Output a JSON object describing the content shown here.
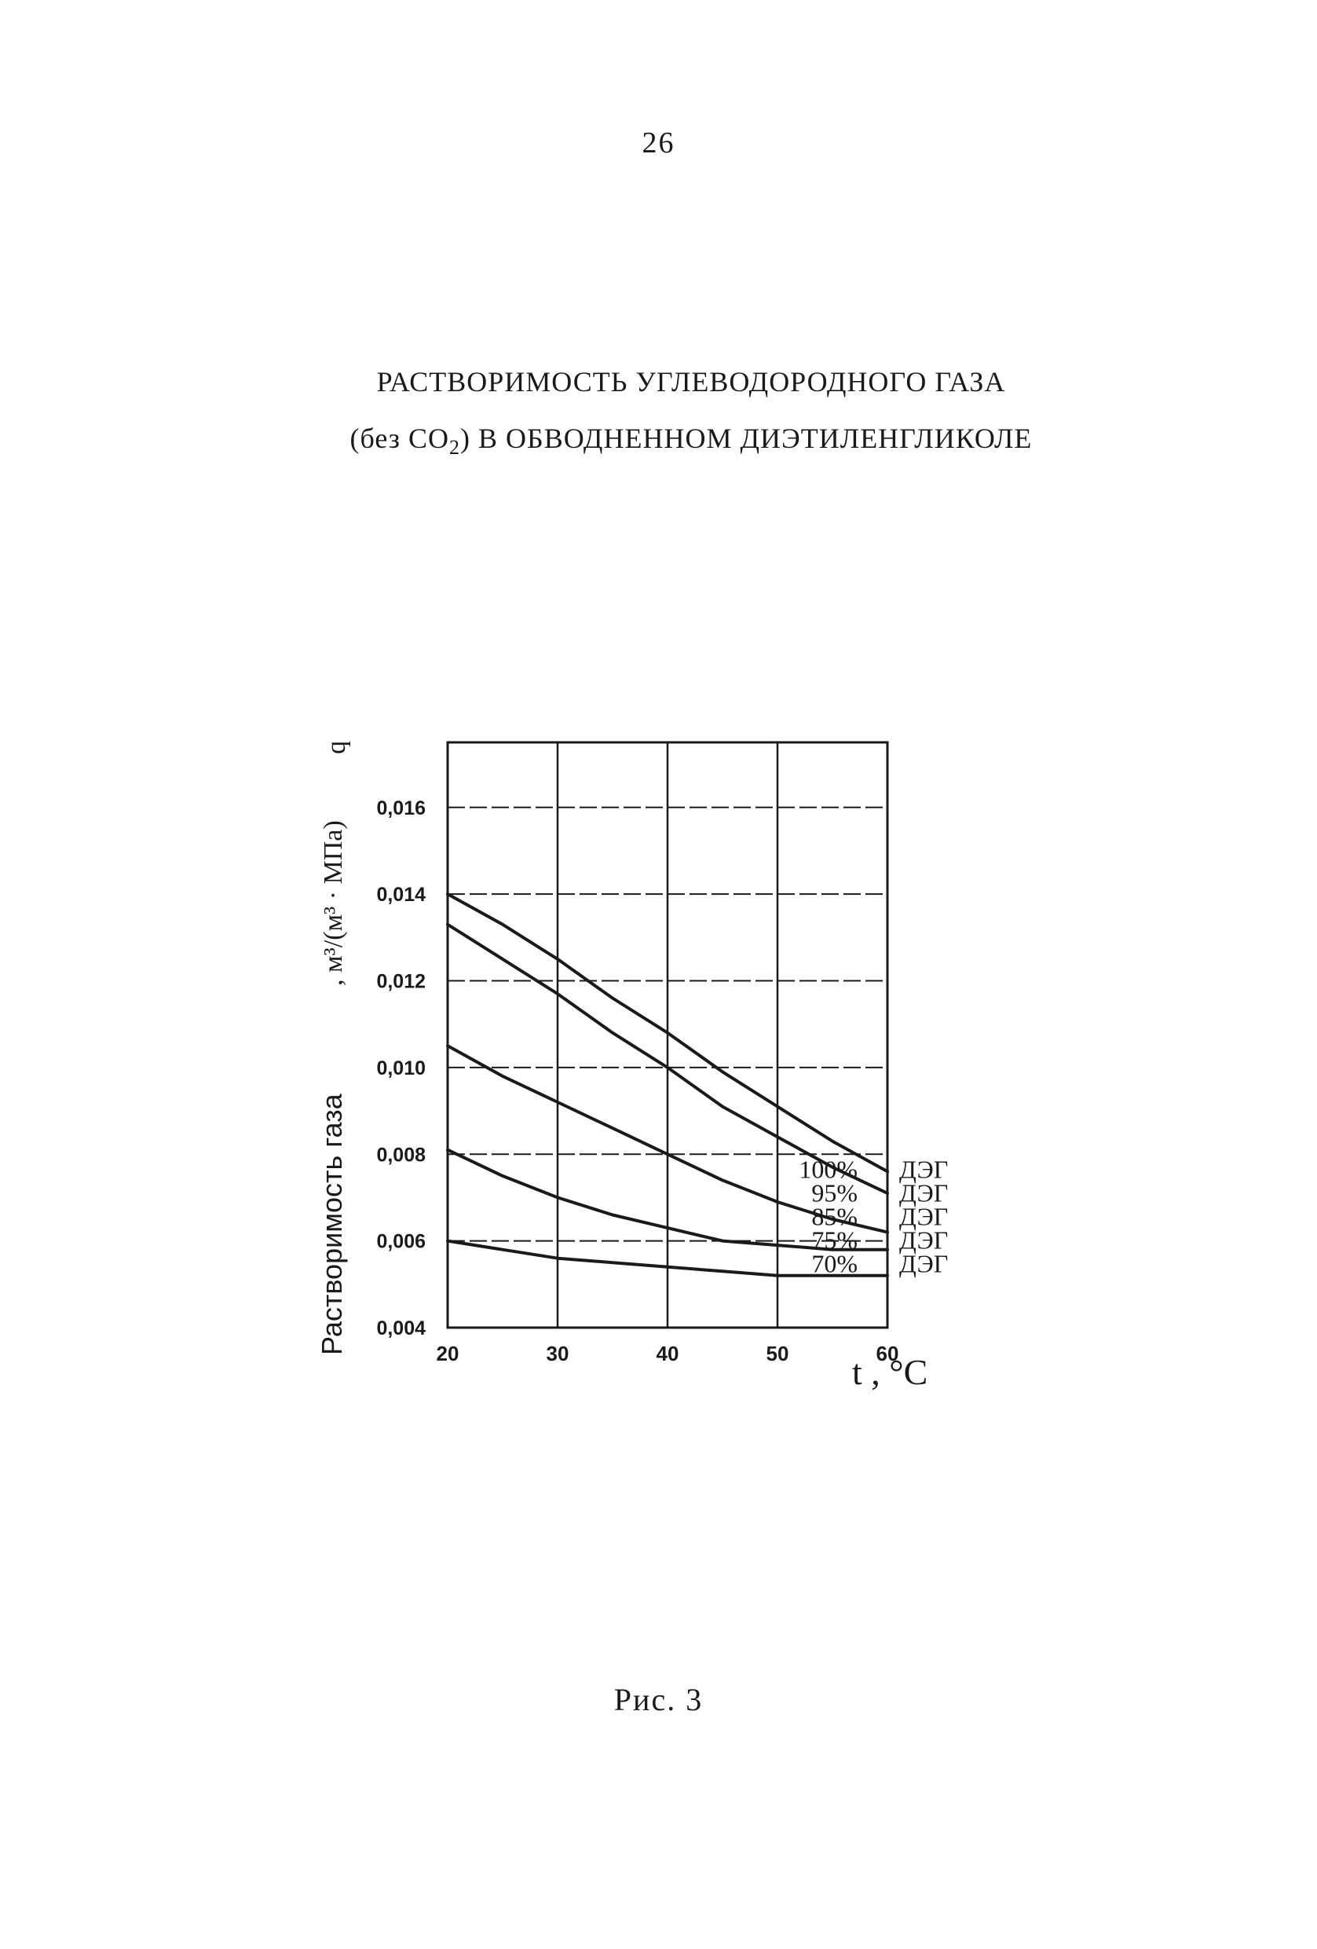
{
  "page_number": "26",
  "title": {
    "line1": "РАСТВОРИМОСТЬ УГЛЕВОДОРОДНОГО ГАЗА",
    "line2_open": "(без CO",
    "line2_sub": "2",
    "line2_rest": ") В ОБВОДНЕННОМ ДИЭТИЛЕНГЛИКОЛЕ"
  },
  "caption": "Рис. 3",
  "chart_data": {
    "type": "line",
    "title": "",
    "xlabel": "t , °C",
    "ylabel": "Растворимость газа q_ж^г , м³/(м³ · МПа)",
    "ylabel_text": "Растворимость газа",
    "ylabel_symbol": "q",
    "ylabel_units": ", м³/(м³ · МПа)",
    "xlim": [
      20,
      60
    ],
    "ylim": [
      0.004,
      0.0175
    ],
    "x_ticks": [
      20,
      30,
      40,
      50,
      60
    ],
    "x_tick_labels": [
      "20",
      "30",
      "40",
      "50",
      "60"
    ],
    "y_ticks": [
      0.004,
      0.006,
      0.008,
      0.01,
      0.012,
      0.014,
      0.016
    ],
    "y_tick_labels": [
      "0,004",
      "0,006",
      "0,008",
      "0,010",
      "0,012",
      "0,014",
      "0,016"
    ],
    "grid": true,
    "legend_placement": "right",
    "x": [
      20,
      25,
      30,
      35,
      40,
      45,
      50,
      55,
      60
    ],
    "series": [
      {
        "name": "100% ДЭГ",
        "pct": "100%",
        "suffix": "ДЭГ",
        "values": [
          0.014,
          0.0133,
          0.0125,
          0.0116,
          0.0108,
          0.0099,
          0.0091,
          0.0083,
          0.0076
        ]
      },
      {
        "name": "95% ДЭГ",
        "pct": "95%",
        "suffix": "ДЭГ",
        "values": [
          0.0133,
          0.0125,
          0.0117,
          0.0108,
          0.01,
          0.0091,
          0.0084,
          0.0077,
          0.0071
        ]
      },
      {
        "name": "85% ДЭГ",
        "pct": "85%",
        "suffix": "ДЭГ",
        "values": [
          0.0105,
          0.0098,
          0.0092,
          0.0086,
          0.008,
          0.0074,
          0.0069,
          0.0065,
          0.0062
        ]
      },
      {
        "name": "75% ДЭГ",
        "pct": "75%",
        "suffix": "ДЭГ",
        "values": [
          0.0081,
          0.0075,
          0.007,
          0.0066,
          0.0063,
          0.006,
          0.0059,
          0.0058,
          0.0058
        ]
      },
      {
        "name": "70% ДЭГ",
        "pct": "70%",
        "suffix": "ДЭГ",
        "values": [
          0.006,
          0.0058,
          0.0056,
          0.0055,
          0.0054,
          0.0053,
          0.0052,
          0.0052,
          0.0052
        ]
      }
    ]
  }
}
